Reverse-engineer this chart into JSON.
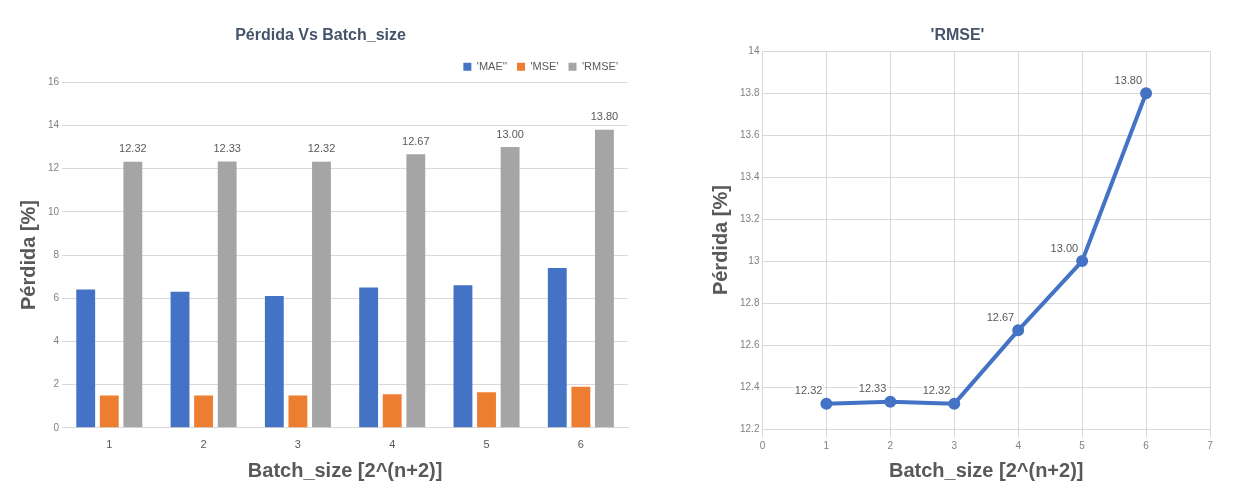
{
  "chart_data": [
    {
      "type": "bar",
      "title": "Pérdida Vs Batch_size",
      "xlabel": "Batch_size [2^(n+2)]",
      "ylabel": "Pérdida [%]",
      "categories": [
        "1",
        "2",
        "3",
        "4",
        "5",
        "6"
      ],
      "series": [
        {
          "name": "'MAE''",
          "color": "#4472c4",
          "values": [
            6.4,
            6.3,
            6.1,
            6.5,
            6.6,
            7.4
          ]
        },
        {
          "name": "'MSE'",
          "color": "#ed7d31",
          "values": [
            1.5,
            1.5,
            1.5,
            1.55,
            1.65,
            1.9
          ]
        },
        {
          "name": "'RMSE'",
          "color": "#a5a5a5",
          "values": [
            12.32,
            12.33,
            12.32,
            12.67,
            13.0,
            13.8
          ],
          "value_labels": [
            "12.32",
            "12.33",
            "12.32",
            "12.67",
            "13.00",
            "13.80"
          ]
        }
      ],
      "ylim": [
        0,
        16
      ],
      "yticks": [
        0,
        2,
        4,
        6,
        8,
        10,
        12,
        14,
        16
      ],
      "grid": "y",
      "legend": "top right"
    },
    {
      "type": "line",
      "title": "'RMSE'",
      "xlabel": "Batch_size [2^(n+2)]",
      "ylabel": "Pérdida [%]",
      "x": [
        1,
        2,
        3,
        4,
        5,
        6
      ],
      "series": [
        {
          "color": "#4472c4",
          "values": [
            12.32,
            12.33,
            12.32,
            12.67,
            13.0,
            13.8
          ],
          "value_labels": [
            "12.32",
            "12.33",
            "12.32",
            "12.67",
            "13.00",
            "13.80"
          ]
        }
      ],
      "xlim": [
        0,
        7
      ],
      "xticks": [
        0,
        1,
        2,
        3,
        4,
        5,
        6,
        7
      ],
      "ylim": [
        12.2,
        14
      ],
      "yticks": [
        {
          "value": 12.2,
          "label": "12.2"
        },
        {
          "value": 12.4,
          "label": "12.4"
        },
        {
          "value": 12.6,
          "label": "12.6"
        },
        {
          "value": 12.8,
          "label": "12.8"
        },
        {
          "value": 13,
          "label": "13"
        },
        {
          "value": 13.2,
          "label": "13.2"
        },
        {
          "value": 13.4,
          "label": "13.4"
        },
        {
          "value": 13.6,
          "label": "13.6"
        },
        {
          "value": 13.8,
          "label": "13.8"
        },
        {
          "value": 14,
          "label": "14"
        }
      ],
      "grid": true,
      "marker": "circle",
      "line_style": "solid"
    }
  ]
}
